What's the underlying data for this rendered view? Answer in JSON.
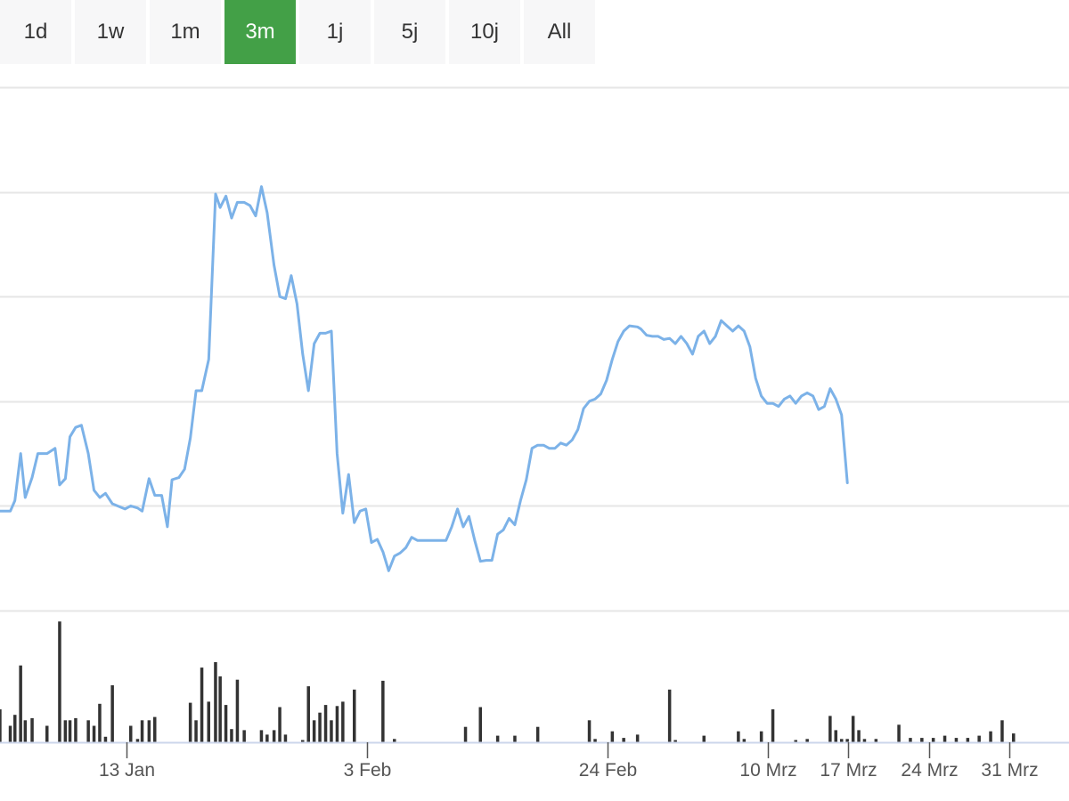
{
  "range_tabs": [
    {
      "label": "1d",
      "active": false
    },
    {
      "label": "1w",
      "active": false
    },
    {
      "label": "1m",
      "active": false
    },
    {
      "label": "3m",
      "active": true
    },
    {
      "label": "1j",
      "active": false
    },
    {
      "label": "5j",
      "active": false
    },
    {
      "label": "10j",
      "active": false
    },
    {
      "label": "All",
      "active": false
    }
  ],
  "colors": {
    "line": "#7cb2e8",
    "volume": "#333333",
    "grid": "#e6e6e6",
    "active_tab": "#43a047",
    "tab_bg": "#f7f7f8"
  },
  "chart_data": {
    "type": "line",
    "title": "",
    "xlabel": "",
    "ylabel": "",
    "x_ticks": [
      "13 Jan",
      "3 Feb",
      "24 Feb",
      "10 Mrz",
      "17 Mrz",
      "24 Mrz",
      "31 Mrz"
    ],
    "x_tick_days": [
      12,
      33,
      54,
      68,
      75,
      82,
      89
    ],
    "x_range_days": [
      1,
      94
    ],
    "ylim": [
      0,
      5
    ],
    "grid": true,
    "legend": "none",
    "series": [
      {
        "values": [
          [
            1.0,
            0.95
          ],
          [
            1.9,
            0.95
          ],
          [
            2.3,
            1.05
          ],
          [
            2.8,
            1.5
          ],
          [
            3.2,
            1.08
          ],
          [
            3.8,
            1.27
          ],
          [
            4.3,
            1.5
          ],
          [
            5.1,
            1.5
          ],
          [
            5.8,
            1.55
          ],
          [
            6.2,
            1.2
          ],
          [
            6.7,
            1.26
          ],
          [
            7.1,
            1.66
          ],
          [
            7.6,
            1.75
          ],
          [
            8.1,
            1.77
          ],
          [
            8.7,
            1.5
          ],
          [
            9.2,
            1.15
          ],
          [
            9.7,
            1.08
          ],
          [
            10.2,
            1.12
          ],
          [
            10.8,
            1.02
          ],
          [
            11.9,
            0.97
          ],
          [
            12.4,
            1.0
          ],
          [
            13.0,
            0.98
          ],
          [
            13.4,
            0.95
          ],
          [
            14.0,
            1.26
          ],
          [
            14.5,
            1.1
          ],
          [
            15.1,
            1.1
          ],
          [
            15.6,
            0.8
          ],
          [
            16.0,
            1.25
          ],
          [
            16.6,
            1.27
          ],
          [
            17.1,
            1.35
          ],
          [
            17.6,
            1.65
          ],
          [
            18.1,
            2.1
          ],
          [
            18.6,
            2.1
          ],
          [
            19.2,
            2.4
          ],
          [
            19.8,
            3.98
          ],
          [
            20.2,
            3.85
          ],
          [
            20.7,
            3.96
          ],
          [
            21.2,
            3.75
          ],
          [
            21.7,
            3.9
          ],
          [
            22.3,
            3.9
          ],
          [
            22.8,
            3.87
          ],
          [
            23.3,
            3.77
          ],
          [
            23.8,
            4.05
          ],
          [
            24.3,
            3.8
          ],
          [
            24.9,
            3.3
          ],
          [
            25.4,
            3.0
          ],
          [
            25.9,
            2.98
          ],
          [
            26.4,
            3.2
          ],
          [
            26.9,
            2.93
          ],
          [
            27.4,
            2.45
          ],
          [
            27.9,
            2.1
          ],
          [
            28.4,
            2.55
          ],
          [
            28.9,
            2.65
          ],
          [
            29.4,
            2.65
          ],
          [
            29.9,
            2.67
          ],
          [
            30.4,
            1.5
          ],
          [
            30.9,
            0.93
          ],
          [
            31.4,
            1.3
          ],
          [
            31.9,
            0.84
          ],
          [
            32.4,
            0.95
          ],
          [
            32.9,
            0.97
          ],
          [
            33.4,
            0.65
          ],
          [
            33.9,
            0.68
          ],
          [
            34.4,
            0.56
          ],
          [
            34.9,
            0.38
          ],
          [
            35.4,
            0.52
          ],
          [
            35.9,
            0.55
          ],
          [
            36.4,
            0.6
          ],
          [
            36.9,
            0.7
          ],
          [
            37.4,
            0.67
          ],
          [
            38.4,
            0.67
          ],
          [
            39.4,
            0.67
          ],
          [
            39.9,
            0.67
          ],
          [
            40.4,
            0.8
          ],
          [
            40.9,
            0.97
          ],
          [
            41.4,
            0.8
          ],
          [
            41.9,
            0.9
          ],
          [
            42.4,
            0.67
          ],
          [
            42.9,
            0.47
          ],
          [
            43.4,
            0.48
          ],
          [
            43.9,
            0.48
          ],
          [
            44.4,
            0.73
          ],
          [
            44.9,
            0.77
          ],
          [
            45.4,
            0.88
          ],
          [
            45.9,
            0.82
          ],
          [
            46.4,
            1.05
          ],
          [
            46.9,
            1.25
          ],
          [
            47.4,
            1.55
          ],
          [
            47.9,
            1.58
          ],
          [
            48.4,
            1.58
          ],
          [
            48.9,
            1.55
          ],
          [
            49.4,
            1.55
          ],
          [
            49.9,
            1.6
          ],
          [
            50.4,
            1.58
          ],
          [
            50.9,
            1.63
          ],
          [
            51.4,
            1.73
          ],
          [
            51.9,
            1.93
          ],
          [
            52.4,
            2.0
          ],
          [
            52.9,
            2.02
          ],
          [
            53.4,
            2.07
          ],
          [
            53.9,
            2.2
          ],
          [
            54.4,
            2.4
          ],
          [
            54.9,
            2.57
          ],
          [
            55.4,
            2.67
          ],
          [
            55.9,
            2.72
          ],
          [
            56.6,
            2.71
          ],
          [
            56.9,
            2.69
          ],
          [
            57.4,
            2.63
          ],
          [
            57.9,
            2.62
          ],
          [
            58.4,
            2.62
          ],
          [
            58.9,
            2.59
          ],
          [
            59.4,
            2.6
          ],
          [
            59.9,
            2.55
          ],
          [
            60.4,
            2.62
          ],
          [
            60.9,
            2.55
          ],
          [
            61.4,
            2.45
          ],
          [
            61.9,
            2.62
          ],
          [
            62.4,
            2.67
          ],
          [
            62.9,
            2.55
          ],
          [
            63.4,
            2.62
          ],
          [
            63.9,
            2.77
          ],
          [
            64.4,
            2.72
          ],
          [
            64.9,
            2.67
          ],
          [
            65.4,
            2.72
          ],
          [
            65.9,
            2.67
          ],
          [
            66.4,
            2.52
          ],
          [
            66.9,
            2.22
          ],
          [
            67.4,
            2.05
          ],
          [
            67.9,
            1.98
          ],
          [
            68.4,
            1.98
          ],
          [
            68.9,
            1.95
          ],
          [
            69.4,
            2.02
          ],
          [
            69.9,
            2.05
          ],
          [
            70.4,
            1.98
          ],
          [
            70.9,
            2.05
          ],
          [
            71.4,
            2.08
          ],
          [
            71.9,
            2.05
          ],
          [
            72.4,
            1.92
          ],
          [
            72.9,
            1.95
          ],
          [
            73.4,
            2.12
          ],
          [
            73.9,
            2.02
          ],
          [
            74.4,
            1.87
          ],
          [
            74.9,
            1.22
          ]
        ]
      },
      {
        "values": [
          [
            1.0,
            0.3
          ],
          [
            1.9,
            0.15
          ],
          [
            2.3,
            0.25
          ],
          [
            2.8,
            0.7
          ],
          [
            3.2,
            0.2
          ],
          [
            3.8,
            0.22
          ],
          [
            5.1,
            0.15
          ],
          [
            6.2,
            1.1
          ],
          [
            6.7,
            0.2
          ],
          [
            7.1,
            0.2
          ],
          [
            7.6,
            0.22
          ],
          [
            8.7,
            0.2
          ],
          [
            9.2,
            0.15
          ],
          [
            9.7,
            0.35
          ],
          [
            10.2,
            0.05
          ],
          [
            10.8,
            0.52
          ],
          [
            12.4,
            0.15
          ],
          [
            13.0,
            0.03
          ],
          [
            13.4,
            0.2
          ],
          [
            14.0,
            0.2
          ],
          [
            14.5,
            0.23
          ],
          [
            17.6,
            0.36
          ],
          [
            18.1,
            0.2
          ],
          [
            18.6,
            0.68
          ],
          [
            19.2,
            0.37
          ],
          [
            19.8,
            0.73
          ],
          [
            20.2,
            0.6
          ],
          [
            20.7,
            0.34
          ],
          [
            21.2,
            0.12
          ],
          [
            21.7,
            0.57
          ],
          [
            22.3,
            0.11
          ],
          [
            23.8,
            0.11
          ],
          [
            24.3,
            0.07
          ],
          [
            24.9,
            0.11
          ],
          [
            25.4,
            0.32
          ],
          [
            25.9,
            0.07
          ],
          [
            27.4,
            0.02
          ],
          [
            27.9,
            0.51
          ],
          [
            28.4,
            0.2
          ],
          [
            28.9,
            0.27
          ],
          [
            29.4,
            0.34
          ],
          [
            29.9,
            0.2
          ],
          [
            30.4,
            0.33
          ],
          [
            30.9,
            0.37
          ],
          [
            31.9,
            0.48
          ],
          [
            34.4,
            0.56
          ],
          [
            35.4,
            0.03
          ],
          [
            41.6,
            0.14
          ],
          [
            42.9,
            0.32
          ],
          [
            44.4,
            0.06
          ],
          [
            45.9,
            0.06
          ],
          [
            47.9,
            0.14
          ],
          [
            52.4,
            0.2
          ],
          [
            52.9,
            0.03
          ],
          [
            54.4,
            0.1
          ],
          [
            55.4,
            0.04
          ],
          [
            56.6,
            0.07
          ],
          [
            59.4,
            0.48
          ],
          [
            59.9,
            0.02
          ],
          [
            62.4,
            0.06
          ],
          [
            65.4,
            0.1
          ],
          [
            65.9,
            0.03
          ],
          [
            67.4,
            0.1
          ],
          [
            68.4,
            0.3
          ],
          [
            70.4,
            0.02
          ],
          [
            71.4,
            0.03
          ],
          [
            73.4,
            0.24
          ],
          [
            73.9,
            0.11
          ],
          [
            74.4,
            0.03
          ],
          [
            74.9,
            0.03
          ],
          [
            75.4,
            0.24
          ],
          [
            75.9,
            0.11
          ],
          [
            76.4,
            0.03
          ],
          [
            77.4,
            0.03
          ],
          [
            79.4,
            0.16
          ],
          [
            80.4,
            0.04
          ],
          [
            81.4,
            0.04
          ],
          [
            82.4,
            0.04
          ],
          [
            83.4,
            0.06
          ],
          [
            84.4,
            0.04
          ],
          [
            85.4,
            0.04
          ],
          [
            86.4,
            0.06
          ],
          [
            87.4,
            0.1
          ],
          [
            88.4,
            0.2
          ],
          [
            89.4,
            0.08
          ]
        ]
      }
    ]
  }
}
